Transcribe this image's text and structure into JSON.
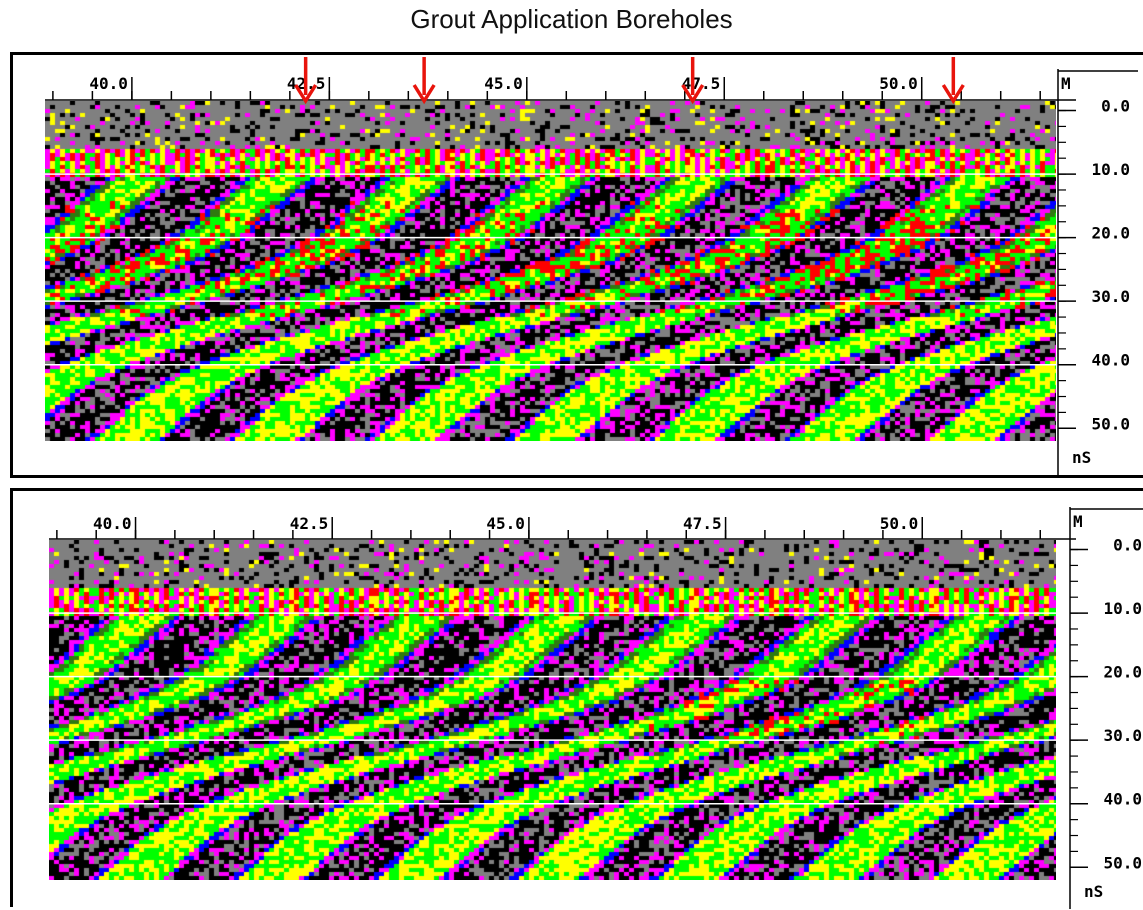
{
  "title": "Grout Application Boreholes",
  "chart_data": [
    {
      "type": "heatmap",
      "name": "top",
      "title": "Grout Application Boreholes",
      "x_unit": "M",
      "y_unit": "nS",
      "x_ticks": [
        40.0,
        42.5,
        45.0,
        47.5,
        50.0
      ],
      "x_tick_labels": [
        "40.0",
        "42.5",
        "45.0",
        "47.5",
        "50.0"
      ],
      "x_range": [
        38.9,
        51.7
      ],
      "y_ticks": [
        0.0,
        10.0,
        20.0,
        30.0,
        40.0,
        50.0
      ],
      "y_tick_labels": [
        "0.0",
        "10.0",
        "20.0",
        "30.0",
        "40.0",
        "50.0"
      ],
      "y_range": [
        -1.5,
        52.0
      ],
      "gridlines_y": [
        10.0,
        20.0,
        30.0,
        40.0
      ],
      "borehole_markers_x": [
        42.2,
        43.7,
        47.1,
        50.4
      ],
      "marker_color": "#e8140c",
      "palette": [
        "#808080",
        "#000000",
        "#ff00ff",
        "#0000ff",
        "#00ff00",
        "#2f7a10",
        "#ffff00",
        "#ff0000"
      ]
    },
    {
      "type": "heatmap",
      "name": "bottom",
      "x_unit": "M",
      "y_unit": "nS",
      "x_ticks": [
        40.0,
        42.5,
        45.0,
        47.5,
        50.0
      ],
      "x_tick_labels": [
        "40.0",
        "42.5",
        "45.0",
        "47.5",
        "50.0"
      ],
      "x_range": [
        38.9,
        51.7
      ],
      "y_ticks": [
        0.0,
        10.0,
        20.0,
        30.0,
        40.0,
        50.0
      ],
      "y_tick_labels": [
        "0.0",
        "10.0",
        "20.0",
        "30.0",
        "40.0",
        "50.0"
      ],
      "y_range": [
        -1.5,
        52.0
      ],
      "gridlines_y": [
        10.0,
        20.0,
        30.0,
        40.0
      ],
      "borehole_markers_x": [],
      "palette": [
        "#808080",
        "#000000",
        "#ff00ff",
        "#0000ff",
        "#00ff00",
        "#2f7a10",
        "#ffff00",
        "#ff0000"
      ]
    }
  ]
}
